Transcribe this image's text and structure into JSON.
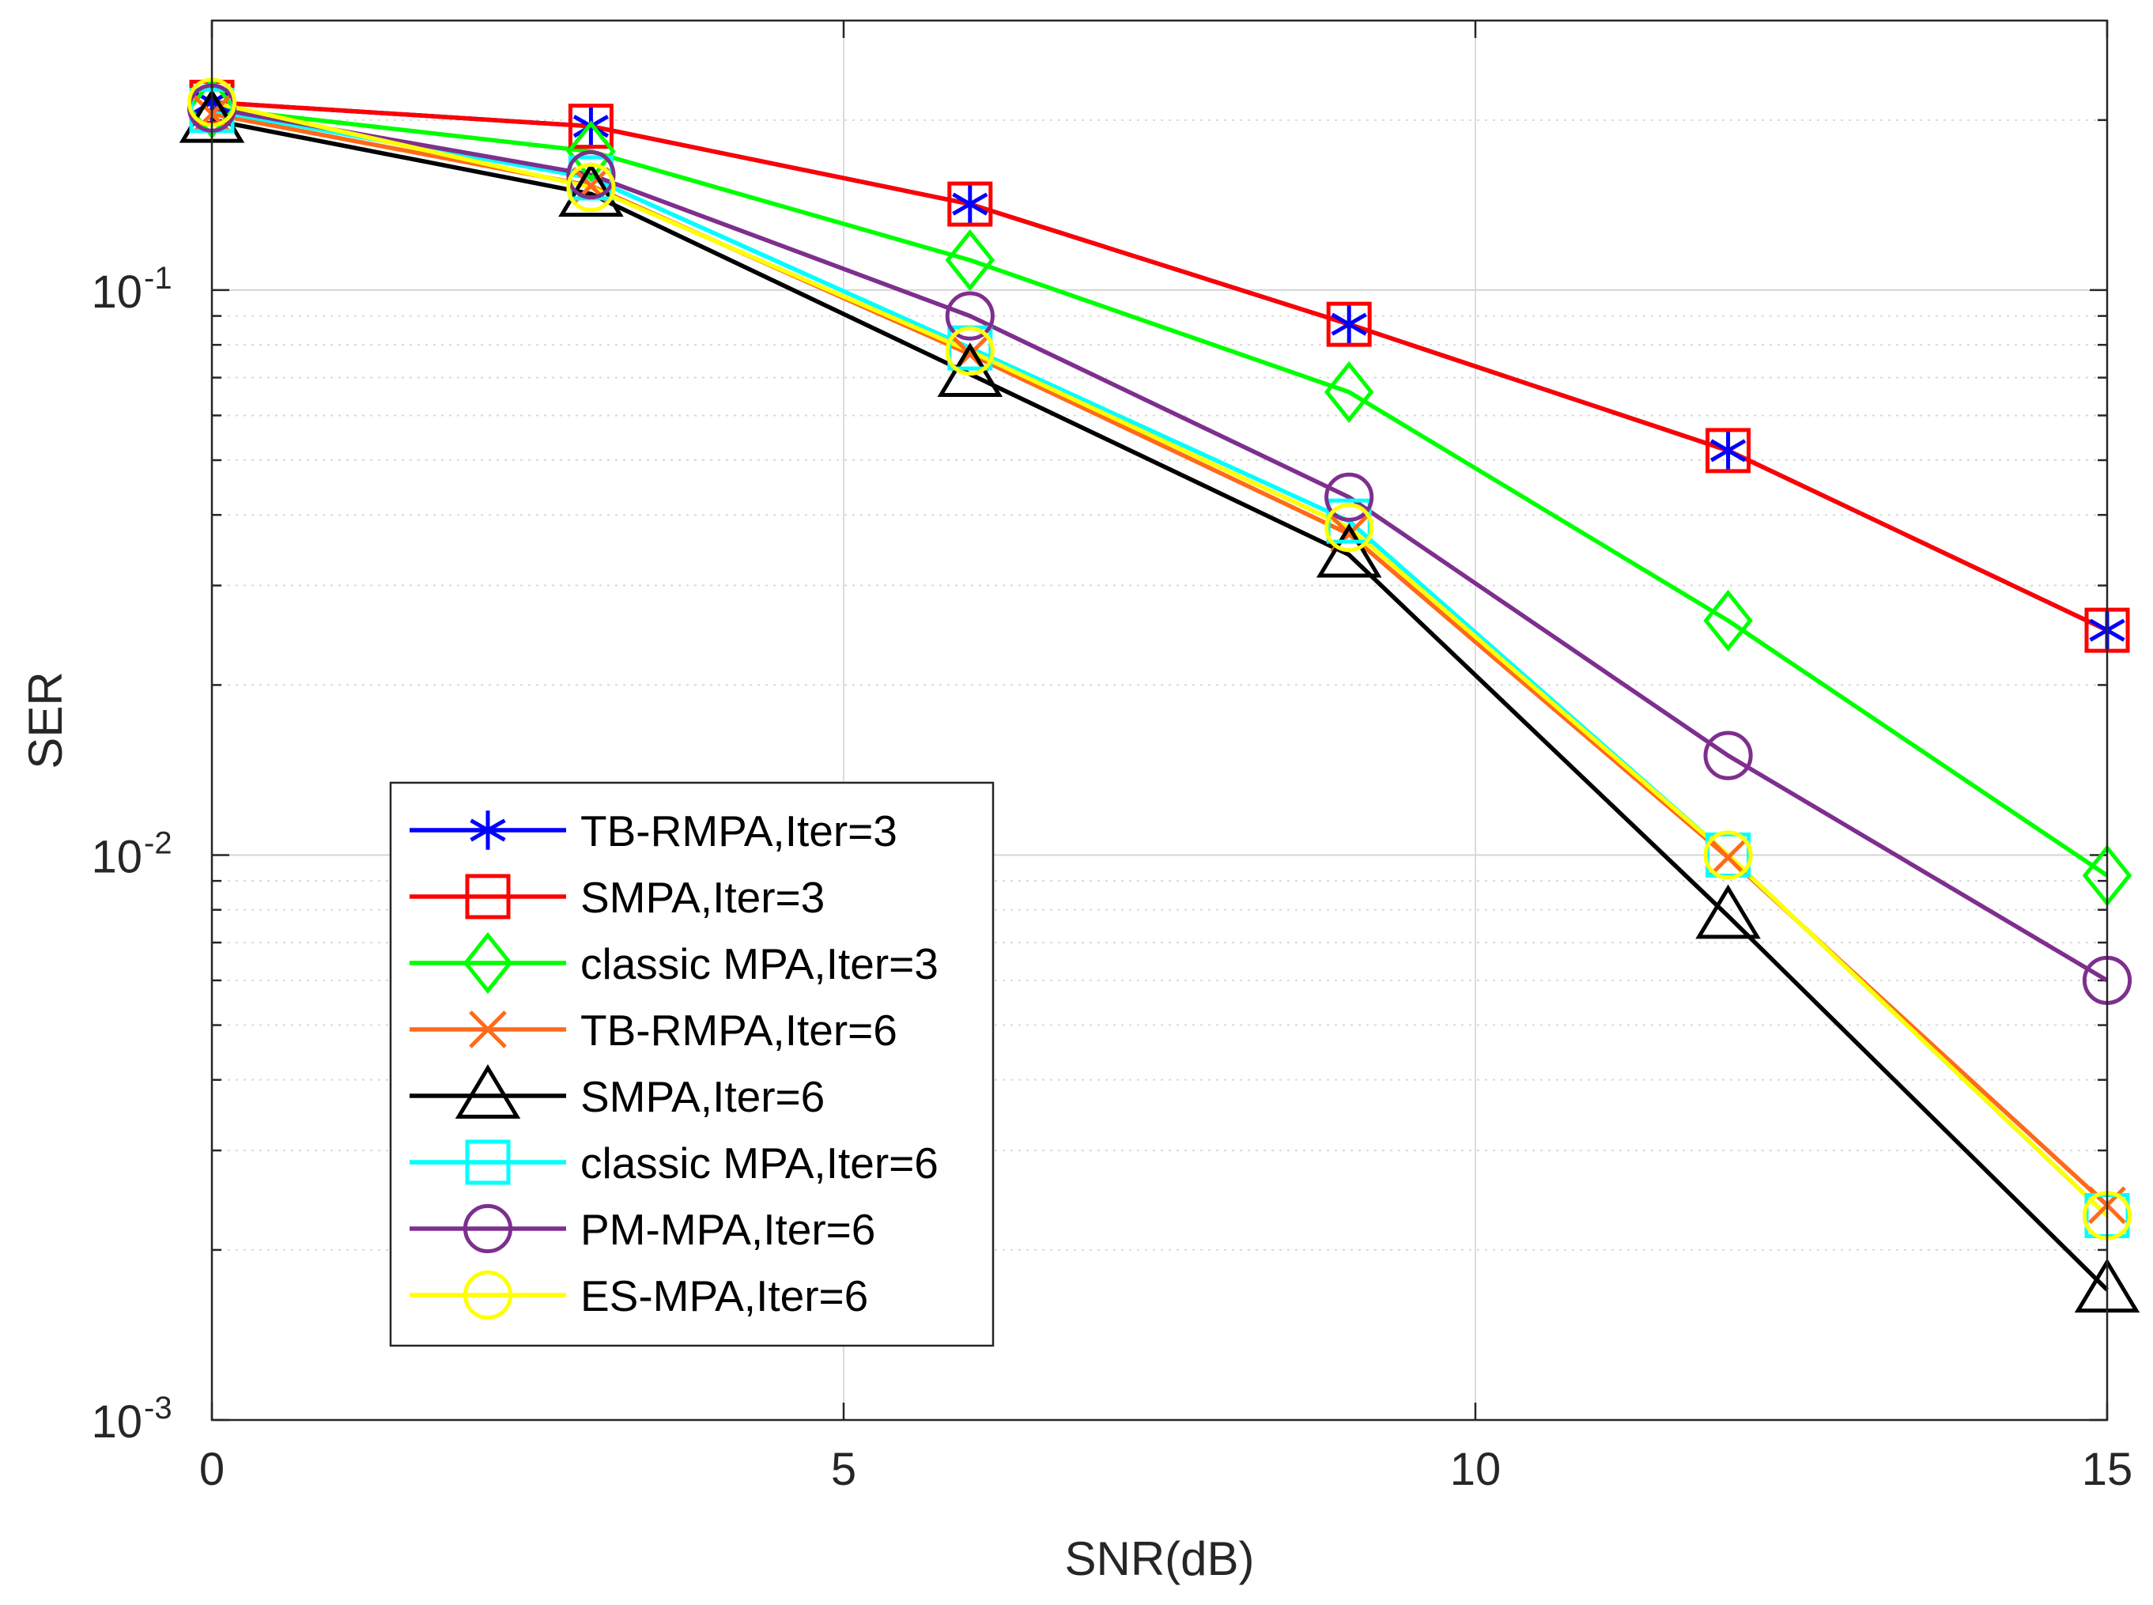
{
  "chart_data": {
    "type": "line",
    "title": "",
    "xlabel": "SNR(dB)",
    "ylabel": "SER",
    "xscale": "linear",
    "yscale": "log",
    "xlim": [
      0,
      15
    ],
    "ylim": [
      0.001,
      0.3
    ],
    "xticks": [
      0,
      5,
      10,
      15
    ],
    "xtick_labels": [
      "0",
      "5",
      "10",
      "15"
    ],
    "yticks": [
      0.1,
      0.01,
      0.001
    ],
    "ytick_labels": [
      {
        "base": "10",
        "exp": "-1"
      },
      {
        "base": "10",
        "exp": "-2"
      },
      {
        "base": "10",
        "exp": "-3"
      }
    ],
    "grid": true,
    "legend_position": "bottom-left",
    "x": [
      0,
      3,
      6,
      9,
      12,
      15
    ],
    "series": [
      {
        "name": "TB-RMPA,Iter=3",
        "color": "#0000ff",
        "marker": "asterisk",
        "values": [
          0.215,
          0.195,
          0.142,
          0.087,
          0.052,
          0.025
        ]
      },
      {
        "name": "SMPA,Iter=3",
        "color": "#ff0000",
        "marker": "square",
        "values": [
          0.215,
          0.195,
          0.142,
          0.087,
          0.052,
          0.025
        ]
      },
      {
        "name": "classic MPA,Iter=3",
        "color": "#00ff00",
        "marker": "diamond",
        "values": [
          0.21,
          0.176,
          0.113,
          0.066,
          0.026,
          0.0092
        ]
      },
      {
        "name": "TB-RMPA,Iter=6",
        "color": "#ff6a1a",
        "marker": "x",
        "values": [
          0.205,
          0.153,
          0.077,
          0.037,
          0.0099,
          0.0024
        ]
      },
      {
        "name": "SMPA,Iter=6",
        "color": "#000000",
        "marker": "triangle",
        "values": [
          0.2,
          0.148,
          0.071,
          0.034,
          0.0078,
          0.0017
        ]
      },
      {
        "name": "classic MPA,Iter=6",
        "color": "#00ffff",
        "marker": "square",
        "values": [
          0.208,
          0.158,
          0.079,
          0.039,
          0.01,
          0.0023
        ]
      },
      {
        "name": "PM-MPA,Iter=6",
        "color": "#7e2f8e",
        "marker": "circle",
        "values": [
          0.21,
          0.16,
          0.09,
          0.043,
          0.015,
          0.006
        ]
      },
      {
        "name": "ES-MPA,Iter=6",
        "color": "#ffff00",
        "marker": "circle",
        "values": [
          0.215,
          0.152,
          0.078,
          0.038,
          0.01,
          0.0023
        ]
      }
    ]
  }
}
